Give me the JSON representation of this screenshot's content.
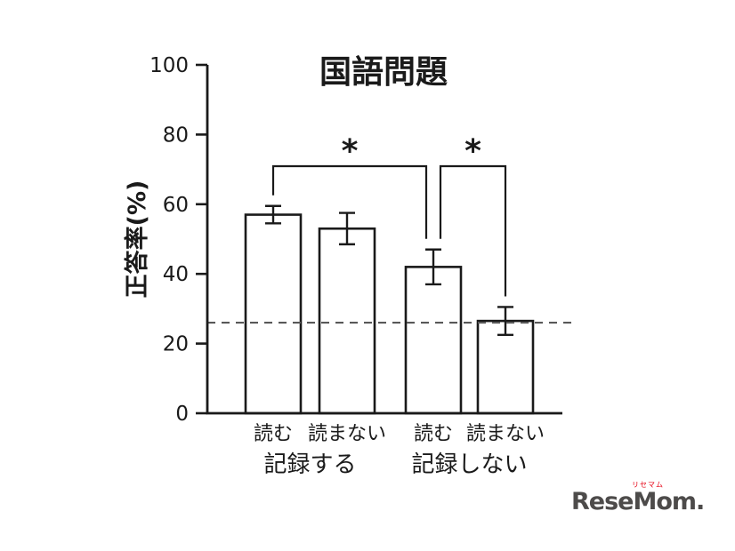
{
  "colors": {
    "ink": "#1a1a1a",
    "bar_fill": "#ffffff",
    "dash_line": "#595959"
  },
  "logo": {
    "ruby": "リセマム",
    "wordmark": "ReseMom",
    "dot": "."
  },
  "chart_data": {
    "type": "bar",
    "title": "国語問題",
    "ylabel": "正答率(%)",
    "ylim": [
      0,
      100
    ],
    "yticks": [
      0,
      20,
      40,
      60,
      80,
      100
    ],
    "grid": false,
    "groups": [
      {
        "label": "記録する",
        "bars": [
          {
            "label": "読む",
            "value": 57,
            "error": 2.5
          },
          {
            "label": "読まない",
            "value": 53,
            "error": 4.5
          }
        ]
      },
      {
        "label": "記録しない",
        "bars": [
          {
            "label": "読む",
            "value": 42,
            "error": 5
          },
          {
            "label": "読まない",
            "value": 26.5,
            "error": 4
          }
        ]
      }
    ],
    "dashed_line_y": 26,
    "significance": [
      {
        "from_bar": 0,
        "to_bar": 2,
        "label": "*"
      },
      {
        "from_bar": 2,
        "to_bar": 3,
        "label": "*"
      }
    ]
  }
}
